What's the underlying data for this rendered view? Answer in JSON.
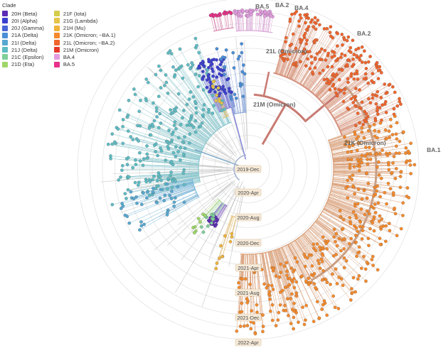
{
  "legend": {
    "title": "Clade",
    "items": [
      {
        "label": "20H (Beta)",
        "color": "#5b2bb5"
      },
      {
        "label": "20I (Alpha)",
        "color": "#3b3fcf"
      },
      {
        "label": "20J (Gamma)",
        "color": "#4a66d6"
      },
      {
        "label": "21A (Delta)",
        "color": "#4a8ed6"
      },
      {
        "label": "21I (Delta)",
        "color": "#57a8d0"
      },
      {
        "label": "21J (Delta)",
        "color": "#5fbcc4"
      },
      {
        "label": "21C (Epsilon)",
        "color": "#7fcf9a"
      },
      {
        "label": "21D (Eta)",
        "color": "#9fd66a"
      },
      {
        "label": "21F (Iota)",
        "color": "#d4cc4a"
      },
      {
        "label": "21G (Lambda)",
        "color": "#e5c44a"
      },
      {
        "label": "21H (Mu)",
        "color": "#f0b43c"
      },
      {
        "label": "21K (Omicron; ~BA.1)",
        "color": "#f58a2c"
      },
      {
        "label": "21L (Omicron; ~BA.2)",
        "color": "#f0652c"
      },
      {
        "label": "21M (Omicron)",
        "color": "#e53a2a"
      },
      {
        "label": "BA.4",
        "color": "#e39ce0"
      },
      {
        "label": "BA.5",
        "color": "#e8318a"
      }
    ]
  },
  "dates": [
    "2019-Dec",
    "2020-Apr",
    "2020-Aug",
    "2020-Dec",
    "2021-Apr",
    "2021-Aug",
    "2021-Dec",
    "2022-Apr"
  ],
  "clade_labels": {
    "ba5": "BA.5",
    "ba2_top": "BA.2",
    "ba4": "BA.4",
    "ba2": "BA.2",
    "c21l": "21L (Omicron)",
    "c21m": "21M (Omicron)",
    "c21k": "21K (Omicron)",
    "ba1": "BA.1"
  }
}
